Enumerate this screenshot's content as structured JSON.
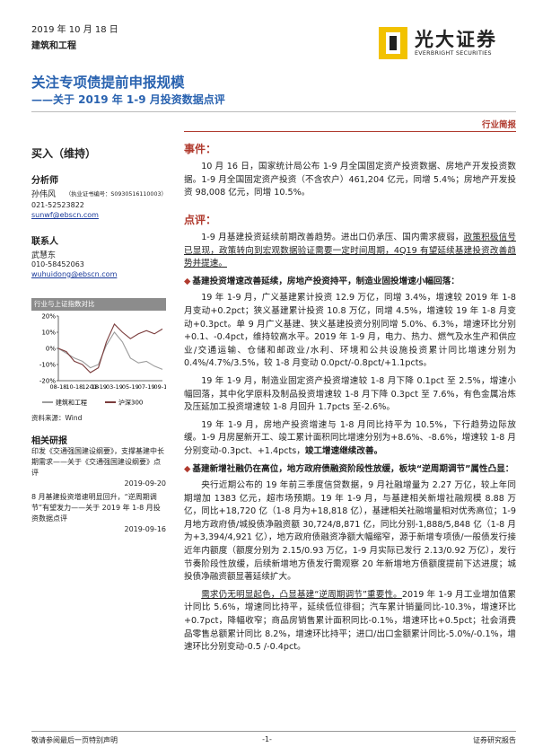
{
  "header": {
    "date": "2019 年 10 月 18 日",
    "industry": "建筑和工程",
    "logo_cn": "光大证券",
    "logo_en": "EVERBRIGHT SECURITIES",
    "title": "关注专项债提前申报规模",
    "subtitle": "——关于 2019 年 1-9 月投资数据点评",
    "report_type": "行业简报"
  },
  "sidebar": {
    "rating": "买入（维持）",
    "analyst_heading": "分析师",
    "analyst_name": "孙伟风",
    "analyst_cert": "（执业证书编号：S0930516110003）",
    "analyst_phone": "021-52523822",
    "analyst_email": "sunwf@ebscn.com",
    "contact_heading": "联系人",
    "contact_name": "武慧东",
    "contact_phone": "010-58452063",
    "contact_email": "wuhuidong@ebscn.com",
    "chart_heading": "行业与上证指数对比",
    "chart_source": "资料来源：Wind",
    "related_heading": "相关研报",
    "related": [
      {
        "title": "印发《交通强国建设纲要》，支撑基建中长期需求——关于《交通强国建设纲要》点评",
        "date": "2019-09-20"
      },
      {
        "title": "8 月基建投资增速明显回升，“逆周期调节”有望发力——关于 2019 年 1-8 月投资数据点评",
        "date": "2019-09-16"
      }
    ]
  },
  "chart_data": {
    "type": "line",
    "categories": [
      "08-18",
      null,
      "10-18",
      null,
      "12-18",
      "01-19",
      null,
      "03-19",
      null,
      "05-19",
      null,
      "07-19",
      null,
      "09-19"
    ],
    "series": [
      {
        "name": "建筑和工程",
        "color": "#9b9b9b",
        "values": [
          0,
          -3,
          -6,
          -8,
          -12,
          -10,
          2,
          10,
          4,
          -6,
          -9,
          -8,
          -11,
          -13
        ]
      },
      {
        "name": "沪深300",
        "color": "#7a3b3b",
        "values": [
          0,
          -2,
          -8,
          -10,
          -15,
          -12,
          4,
          15,
          10,
          6,
          9,
          11,
          9,
          12
        ]
      }
    ],
    "ylim": [
      -20,
      20
    ],
    "yticks": [
      {
        "value": -20,
        "label": "-20%"
      },
      {
        "value": -10,
        "label": "-10%"
      },
      {
        "value": 0,
        "label": "0%"
      },
      {
        "value": 10,
        "label": "10%"
      },
      {
        "value": 20,
        "label": "20%"
      }
    ]
  },
  "body": {
    "event_heading": "事件：",
    "event": "10 月 16 日，国家统计局公布 1-9 月全国固定资产投资数据、房地产开发投资数据。1-9 月全国固定资产投资（不含农户）461,204 亿元，同增 5.4%；房地产开发投资 98,008 亿元，同增 10.5%。",
    "comment_heading": "点评：",
    "intro": [
      "1-9 月基建投资延续前期改善趋势。进出口仍承压、国内需求疲弱，",
      "政策积极信号已显现，政策转向到宏观数据验证需要一定时间周期，4Q19 有望延续基建投资改善趋势并提速。"
    ],
    "bullet1": "基建投资增速改善延续，房地产投资持平，制造业固投增速小幅回落：",
    "p1": "19 年 1-9 月，广义基建累计投资 12.9 万亿，同增 3.4%，增速较 2019 年 1-8 月变动+0.2pct；狭义基建累计投资 10.8 万亿，同增 4.5%，增速较 19 年 1-8 月变动+0.3pct。单 9 月广义基建、狭义基建投资分别同增 5.0%、6.3%，增速环比分别+0.1、-0.4pct，维持较高水平。2019 年 1-9 月，电力、热力、燃气及水生产和供应业/交通运输、仓储和邮政业/水利、环境和公共设施投资累计同比增速分别为 0.4%/4.7%/3.5%，较 1-8 月变动 0.0pct/-0.8pct/+1.1pcts。",
    "p2": "19 年 1-9 月，制造业固定资产投资增速较 1-8 月下降 0.1pct 至 2.5%，增速小幅回落，其中化学原料及制品投资增速较 1-8 月下降 0.3pct 至 7.6%，有色金属冶炼及压延加工投资增速较 1-8 月回升 1.7pcts 至-2.6%。",
    "p3": [
      "19 年 1-9 月，房地产投资增速与 1-8 月同比持平为 10.5%，下行趋势边际放缓。1-9 月房屋新开工、竣工累计面积同比增速分别为+8.6%、-8.6%，增速较 1-8 月分别变动-0.3pct、+1.4pcts，",
      "竣工增速继续改善。"
    ],
    "bullet2": "基建新增社融仍在高位，地方政府债融资阶段性放缓，板块“逆周期调节”属性凸显：",
    "p4": "央行近期公布的 19 年前三季度信贷数据，9 月社融增量为 2.27 万亿，较上年同期增加 1383 亿元，超市场预期。19 年 1-9 月，与基建相关新增社融规模 8.88 万亿，同比+18,720 亿（1-8 月为+18,818 亿），基建相关社融增量相对优秀高位；1-9 月地方政府债/城投债净融资额 30,724/8,871 亿，同比分别-1,888/5,848 亿（1-8 月为+3,394/4,921 亿），地方政府债融资净额大幅缩窄，源于新增专项债/一般债发行接近年内额度（额度分别为 2.15/0.93 万亿，1-9 月实际已发行 2.13/0.92 万亿），发行节奏阶段性放缓，后续新增地方债发行需观察 20 年新增地方债额度提前下达进度；城投债净融资额显著延续扩大。",
    "p5": [
      "需求仍无明显起色，凸显基建“逆周期调节”重要性。",
      "2019 年 1-9 月工业增加值累计同比 5.6%，增速同比持平，延续低位徘徊；汽车累计销量同比-10.3%，增速环比+0.7pct，降幅收窄；商品房销售累计面积同比-0.1%，增速环比+0.5pct；社会消费品零售总额累计同比 8.2%，增速环比持平；进口/出口金额累计同比-5.0%/-0.1%，增速环比分别变动-0.5 /-0.4pct。"
    ]
  },
  "footer": {
    "left": "敬请参阅最后一页特别声明",
    "center": "-1-",
    "right": "证券研究报告"
  }
}
